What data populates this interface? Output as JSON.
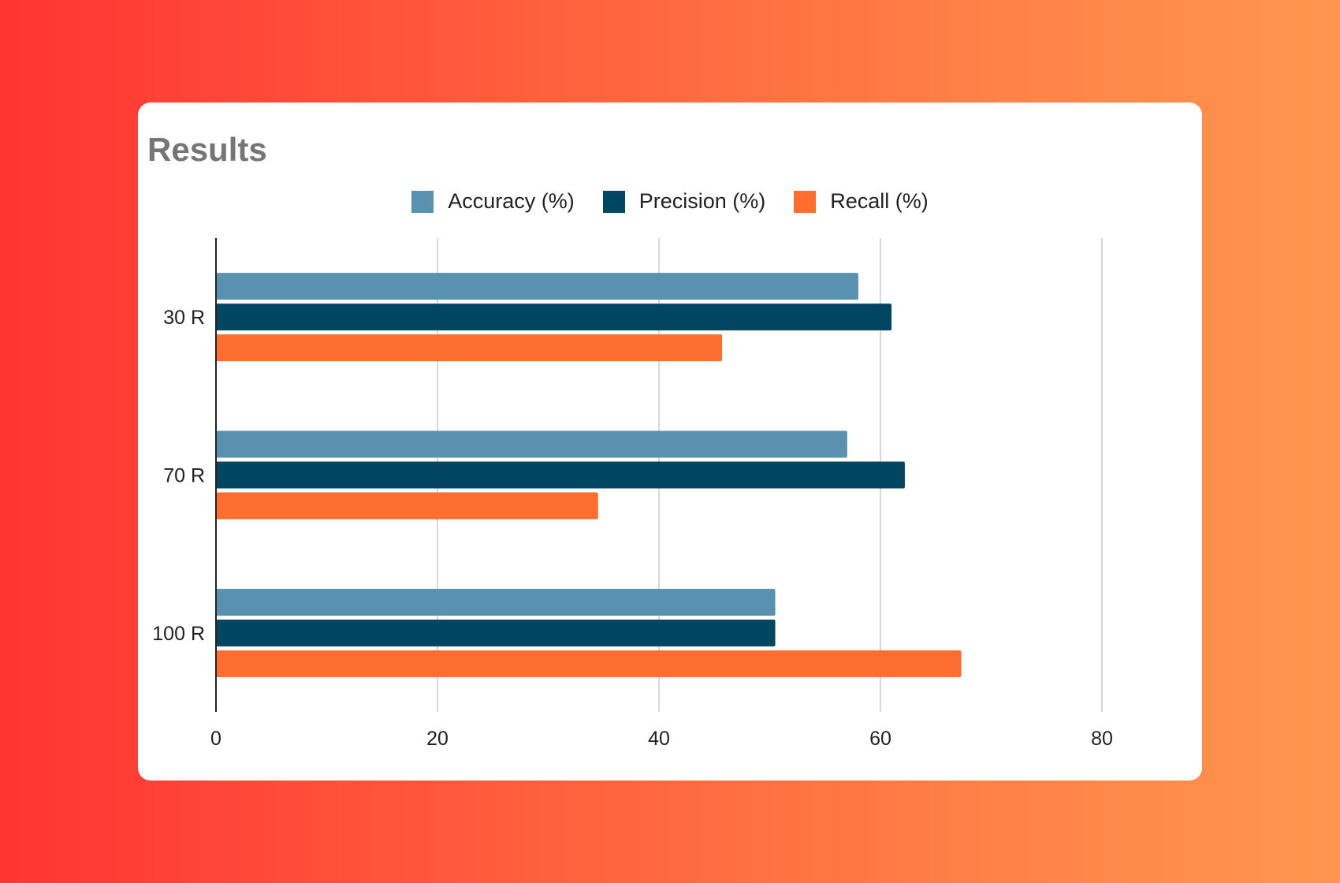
{
  "chart_data": {
    "type": "bar",
    "orientation": "horizontal",
    "title": "Results",
    "categories": [
      "30 R",
      "70 R",
      "100 R"
    ],
    "series": [
      {
        "name": "Accuracy (%)",
        "color": "#5a91b0",
        "values": [
          58,
          57,
          50.5
        ]
      },
      {
        "name": "Precision (%)",
        "color": "#004562",
        "values": [
          61,
          62.2,
          50.5
        ]
      },
      {
        "name": "Recall (%)",
        "color": "#ff6e31",
        "values": [
          45.7,
          34.5,
          67.3
        ]
      }
    ],
    "xlim": [
      0,
      80
    ],
    "xticks": [
      0,
      20,
      40,
      60,
      80
    ],
    "grid": true,
    "legend_position": "top"
  }
}
